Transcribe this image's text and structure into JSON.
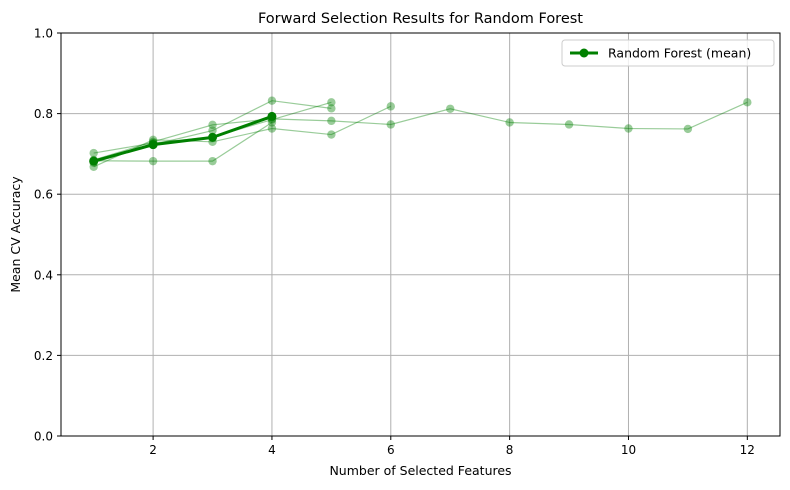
{
  "chart_data": {
    "type": "line",
    "title": "Forward Selection Results for Random Forest",
    "xlabel": "Number of Selected Features",
    "ylabel": "Mean CV Accuracy",
    "xlim": [
      0.45,
      12.55
    ],
    "ylim": [
      0.0,
      1.0
    ],
    "xticks": [
      2,
      4,
      6,
      8,
      10,
      12
    ],
    "yticks": [
      0.0,
      0.2,
      0.4,
      0.6,
      0.8,
      1.0
    ],
    "xtick_labels": [
      "2",
      "4",
      "6",
      "8",
      "10",
      "12"
    ],
    "ytick_labels": [
      "0.0",
      "0.2",
      "0.4",
      "0.6",
      "0.8",
      "1.0"
    ],
    "grid": true,
    "legend_position": "top-right",
    "colors": {
      "mean": "#008000",
      "runs": "#008000",
      "grid": "#b0b0b0"
    },
    "runs": [
      {
        "x": [
          1,
          2,
          3,
          4,
          5,
          6,
          7,
          8,
          9,
          10,
          11,
          12
        ],
        "y": [
          0.685,
          0.73,
          0.772,
          0.787,
          0.782,
          0.773,
          0.812,
          0.778,
          0.773,
          0.763,
          0.762,
          0.828
        ]
      },
      {
        "x": [
          1,
          2,
          3,
          4,
          5,
          6
        ],
        "y": [
          0.668,
          0.735,
          0.73,
          0.763,
          0.748,
          0.818
        ]
      },
      {
        "x": [
          1,
          2,
          3,
          4,
          5
        ],
        "y": [
          0.678,
          0.723,
          0.758,
          0.832,
          0.813
        ]
      },
      {
        "x": [
          1,
          2,
          3,
          4,
          5
        ],
        "y": [
          0.702,
          0.727,
          0.742,
          0.785,
          0.828
        ]
      },
      {
        "x": [
          1,
          2,
          3,
          4
        ],
        "y": [
          0.683,
          0.682,
          0.682,
          0.778
        ]
      }
    ],
    "series": [
      {
        "name": "Random Forest (mean)",
        "x": [
          1,
          2,
          3,
          4
        ],
        "y": [
          0.682,
          0.723,
          0.741,
          0.793
        ]
      }
    ]
  }
}
